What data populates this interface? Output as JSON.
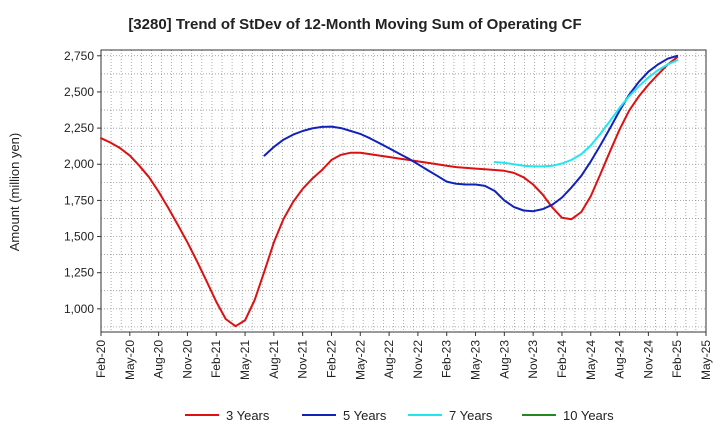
{
  "chart_data": {
    "type": "line",
    "title": "[3280]  Trend of StDev of 12-Month Moving Sum of Operating CF",
    "xlabel": "",
    "ylabel": "Amount (million yen)",
    "ylim": [
      840,
      2790
    ],
    "yticks": [
      1000,
      1250,
      1500,
      1750,
      2000,
      2250,
      2500,
      2750
    ],
    "ytick_labels": [
      "1,000",
      "1,250",
      "1,500",
      "1,750",
      "2,000",
      "2,250",
      "2,500",
      "2,750"
    ],
    "x_categories": [
      "Feb-20",
      "May-20",
      "Aug-20",
      "Nov-20",
      "Feb-21",
      "May-21",
      "Aug-21",
      "Nov-21",
      "Feb-22",
      "May-22",
      "Aug-22",
      "Nov-22",
      "Feb-23",
      "May-23",
      "Aug-23",
      "Nov-23",
      "Feb-24",
      "May-24",
      "Aug-24",
      "Nov-24",
      "Feb-25",
      "May-25"
    ],
    "grid": true,
    "legend_position": "bottom",
    "series": [
      {
        "name": "3 Years",
        "color": "#dd1111",
        "x": [
          0,
          0.33,
          0.67,
          1,
          1.33,
          1.67,
          2,
          2.33,
          2.67,
          3,
          3.33,
          3.67,
          4,
          4.33,
          4.67,
          5,
          5.33,
          5.67,
          6,
          6.33,
          6.67,
          7,
          7.33,
          7.67,
          8,
          8.33,
          8.67,
          9,
          9.33,
          9.67,
          10,
          10.33,
          10.67,
          11,
          11.33,
          11.67,
          12,
          12.33,
          12.67,
          13,
          13.33,
          13.67,
          14,
          14.33,
          14.67,
          15,
          15.33,
          15.67,
          16,
          16.33,
          16.67,
          17,
          17.33,
          17.67,
          18,
          18.33,
          18.67,
          19,
          19.33,
          19.67,
          20
        ],
        "values": [
          2180,
          2150,
          2110,
          2060,
          1990,
          1910,
          1810,
          1700,
          1580,
          1460,
          1330,
          1190,
          1050,
          930,
          880,
          920,
          1060,
          1260,
          1460,
          1620,
          1740,
          1830,
          1900,
          1960,
          2030,
          2065,
          2080,
          2080,
          2070,
          2060,
          2050,
          2040,
          2030,
          2020,
          2010,
          2000,
          1990,
          1980,
          1975,
          1970,
          1965,
          1960,
          1955,
          1940,
          1910,
          1860,
          1790,
          1700,
          1630,
          1620,
          1670,
          1780,
          1930,
          2090,
          2240,
          2370,
          2470,
          2550,
          2620,
          2690,
          2740
        ]
      },
      {
        "name": "5 Years",
        "color": "#1122bb",
        "x": [
          5.67,
          6,
          6.33,
          6.67,
          7,
          7.33,
          7.67,
          8,
          8.33,
          8.67,
          9,
          9.33,
          9.67,
          10,
          10.33,
          10.67,
          11,
          11.33,
          11.67,
          12,
          12.33,
          12.67,
          13,
          13.33,
          13.67,
          14,
          14.33,
          14.67,
          15,
          15.33,
          15.67,
          16,
          16.33,
          16.67,
          17,
          17.33,
          17.67,
          18,
          18.33,
          18.67,
          19,
          19.33,
          19.67,
          20
        ],
        "values": [
          2060,
          2120,
          2170,
          2205,
          2230,
          2248,
          2258,
          2260,
          2250,
          2230,
          2210,
          2180,
          2145,
          2110,
          2075,
          2040,
          2000,
          1960,
          1920,
          1880,
          1865,
          1860,
          1860,
          1850,
          1815,
          1750,
          1705,
          1680,
          1675,
          1690,
          1720,
          1770,
          1840,
          1920,
          2020,
          2130,
          2250,
          2370,
          2480,
          2570,
          2640,
          2690,
          2730,
          2750
        ]
      },
      {
        "name": "7 Years",
        "color": "#22e6ee",
        "x": [
          13.67,
          14,
          14.33,
          14.67,
          15,
          15.33,
          15.67,
          16,
          16.33,
          16.67,
          17,
          17.33,
          17.67,
          18,
          18.33,
          18.67,
          19,
          19.33,
          19.67,
          20
        ],
        "values": [
          2015,
          2010,
          2000,
          1990,
          1985,
          1985,
          1990,
          2005,
          2030,
          2070,
          2130,
          2210,
          2300,
          2390,
          2470,
          2540,
          2600,
          2650,
          2690,
          2720
        ]
      },
      {
        "name": "10 Years",
        "color": "#228822",
        "x": [],
        "values": []
      }
    ]
  }
}
